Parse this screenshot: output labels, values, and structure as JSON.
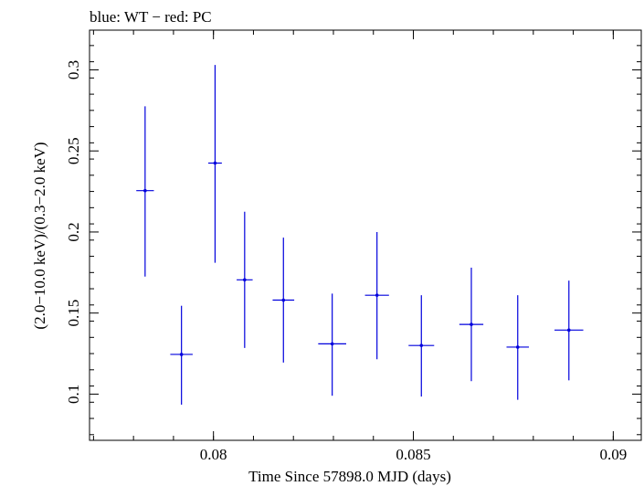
{
  "chart_data": {
    "type": "scatter",
    "title": "blue: WT − red: PC",
    "xlabel": "Time Since 57898.0 MJD (days)",
    "ylabel": "(2.0−10.0 keV)/(0.3−2.0 keV)",
    "xlim": [
      0.0769,
      0.0907
    ],
    "ylim": [
      0.0715,
      0.3245
    ],
    "x_ticks": [
      {
        "value": 0.08,
        "label": "0.08"
      },
      {
        "value": 0.085,
        "label": "0.085"
      },
      {
        "value": 0.09,
        "label": "0.09"
      }
    ],
    "y_ticks": [
      {
        "value": 0.1,
        "label": "0.1"
      },
      {
        "value": 0.15,
        "label": "0.15"
      },
      {
        "value": 0.2,
        "label": "0.2"
      },
      {
        "value": 0.25,
        "label": "0.25"
      },
      {
        "value": 0.3,
        "label": "0.3"
      }
    ],
    "series": [
      {
        "name": "WT",
        "color": "#0000dd",
        "points": [
          {
            "x": 0.07829,
            "xerr": 0.00022,
            "y": 0.2255,
            "ylo": 0.1725,
            "yhi": 0.2775
          },
          {
            "x": 0.0792,
            "xerr": 0.00028,
            "y": 0.1245,
            "ylo": 0.0935,
            "yhi": 0.1545
          },
          {
            "x": 0.08004,
            "xerr": 0.00017,
            "y": 0.2425,
            "ylo": 0.181,
            "yhi": 0.303
          },
          {
            "x": 0.08078,
            "xerr": 0.0002,
            "y": 0.1705,
            "ylo": 0.1285,
            "yhi": 0.2125
          },
          {
            "x": 0.08175,
            "xerr": 0.00027,
            "y": 0.158,
            "ylo": 0.1195,
            "yhi": 0.1965
          },
          {
            "x": 0.08297,
            "xerr": 0.00035,
            "y": 0.131,
            "ylo": 0.099,
            "yhi": 0.162
          },
          {
            "x": 0.08409,
            "xerr": 0.0003,
            "y": 0.161,
            "ylo": 0.1215,
            "yhi": 0.2
          },
          {
            "x": 0.0852,
            "xerr": 0.00032,
            "y": 0.13,
            "ylo": 0.0985,
            "yhi": 0.161
          },
          {
            "x": 0.08645,
            "xerr": 0.0003,
            "y": 0.143,
            "ylo": 0.108,
            "yhi": 0.178
          },
          {
            "x": 0.08761,
            "xerr": 0.00028,
            "y": 0.129,
            "ylo": 0.0965,
            "yhi": 0.161
          },
          {
            "x": 0.08889,
            "xerr": 0.00036,
            "y": 0.1395,
            "ylo": 0.1085,
            "yhi": 0.17
          }
        ]
      }
    ]
  }
}
